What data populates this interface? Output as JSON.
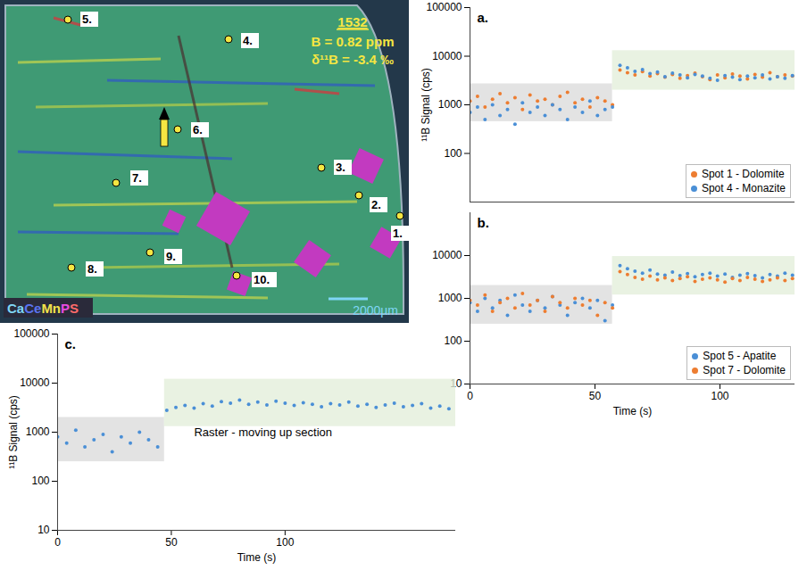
{
  "chart_data": [
    {
      "type": "image",
      "title": "1532",
      "annotations": [
        "B = 0.82 ppm",
        "δ¹¹B = -3.4 ‰"
      ],
      "spots": [
        "1.",
        "2.",
        "3.",
        "4.",
        "5.",
        "6.",
        "7.",
        "8.",
        "9.",
        "10."
      ],
      "element_legend": [
        {
          "name": "Ca",
          "color": "#7fd6f5"
        },
        {
          "name": "Ce",
          "color": "#5b74f0"
        },
        {
          "name": "Mn",
          "color": "#f2e24b"
        },
        {
          "name": "P",
          "color": "#e84be0"
        },
        {
          "name": "S",
          "color": "#ff6a6a"
        }
      ],
      "scale_bar": "2000µm"
    },
    {
      "type": "scatter",
      "title": "a.",
      "y_label": "¹¹B Signal (cps)",
      "log": "y",
      "tick_labels": "y",
      "legend": "lower right",
      "xlim": [
        0,
        130
      ],
      "ylim": [
        10,
        100000
      ],
      "yticks": [
        100,
        1000,
        10000,
        100000
      ],
      "bands": [
        {
          "x": [
            0,
            57
          ],
          "y": [
            450,
            2700
          ],
          "color": "#dcdcdc"
        },
        {
          "x": [
            57,
            130
          ],
          "y": [
            2000,
            13000
          ],
          "color": "#e4efdb"
        }
      ],
      "x": [
        0,
        3,
        6,
        9,
        12,
        15,
        18,
        21,
        24,
        27,
        30,
        33,
        36,
        39,
        42,
        45,
        48,
        51,
        54,
        57,
        60,
        63,
        66,
        69,
        72,
        75,
        78,
        81,
        84,
        87,
        90,
        93,
        96,
        99,
        102,
        105,
        108,
        111,
        114,
        117,
        120,
        123,
        126,
        129
      ],
      "series": [
        {
          "name": "Spot 1 - Dolomite",
          "color": "#ed7d31",
          "marker": "circle",
          "values": [
            1200,
            1500,
            900,
            1300,
            1700,
            1100,
            1400,
            800,
            1600,
            1200,
            1300,
            1000,
            1500,
            1800,
            1100,
            1300,
            900,
            1400,
            1200,
            1000,
            5200,
            4600,
            4100,
            4800,
            3900,
            4400,
            3700,
            4200,
            3500,
            4000,
            4500,
            3800,
            3300,
            4100,
            3600,
            4300,
            3900,
            3400,
            4200,
            3700,
            4600,
            3800,
            4100,
            3900
          ]
        },
        {
          "name": "Spot 4 - Monazite",
          "color": "#4a8fd6",
          "marker": "circle",
          "values": [
            700,
            900,
            500,
            1000,
            600,
            800,
            400,
            1100,
            700,
            900,
            600,
            1000,
            800,
            500,
            900,
            700,
            1200,
            600,
            800,
            900,
            6500,
            5800,
            4900,
            5300,
            4400,
            4700,
            3800,
            4500,
            4100,
            3600,
            4200,
            3900,
            3500,
            3200,
            4000,
            3700,
            3300,
            3900,
            3600,
            4100,
            3400,
            3800,
            3500,
            4000
          ]
        }
      ]
    },
    {
      "type": "scatter",
      "title": "b.",
      "x_label": "Time (s)",
      "log": "y",
      "legend": "lower right",
      "xlim": [
        0,
        130
      ],
      "ylim": [
        10,
        100000
      ],
      "xticks": [
        0,
        50,
        100
      ],
      "yticks": [
        10,
        100,
        1000,
        10000
      ],
      "bands": [
        {
          "x": [
            0,
            57
          ],
          "y": [
            250,
            2000
          ],
          "color": "#dcdcdc"
        },
        {
          "x": [
            57,
            130
          ],
          "y": [
            1200,
            9500
          ],
          "color": "#e4efdb"
        }
      ],
      "x": [
        0,
        3,
        6,
        9,
        12,
        15,
        18,
        21,
        24,
        27,
        30,
        33,
        36,
        39,
        42,
        45,
        48,
        51,
        54,
        57,
        60,
        63,
        66,
        69,
        72,
        75,
        78,
        81,
        84,
        87,
        90,
        93,
        96,
        99,
        102,
        105,
        108,
        111,
        114,
        117,
        120,
        123,
        126,
        129
      ],
      "series": [
        {
          "name": "Spot 5 - Apatite",
          "color": "#4a8fd6",
          "marker": "circle",
          "values": [
            800,
            500,
            1000,
            600,
            900,
            400,
            1200,
            700,
            500,
            900,
            600,
            1100,
            700,
            400,
            800,
            1000,
            600,
            900,
            300,
            700,
            5800,
            4900,
            4300,
            3900,
            4600,
            3700,
            3500,
            4100,
            3400,
            3800,
            3200,
            3600,
            3900,
            3300,
            3700,
            3100,
            3500,
            3800,
            3400,
            3000,
            3600,
            3300,
            3900,
            3500
          ]
        },
        {
          "name": "Spot 7 - Dolomite",
          "color": "#ed7d31",
          "marker": "circle",
          "values": [
            900,
            700,
            1200,
            500,
            800,
            1000,
            600,
            1300,
            700,
            900,
            500,
            1100,
            800,
            600,
            1000,
            700,
            900,
            400,
            800,
            600,
            4200,
            3600,
            3100,
            2800,
            3300,
            2700,
            3000,
            2600,
            2900,
            3200,
            2500,
            2800,
            3000,
            2700,
            2400,
            2900,
            2600,
            3100,
            2800,
            2500,
            2700,
            3000,
            2600,
            2900
          ]
        }
      ]
    },
    {
      "type": "scatter",
      "title": "c.",
      "y_label": "¹¹B Signal (cps)",
      "x_label": "Time (s)",
      "log": "y",
      "xlim": [
        0,
        175
      ],
      "ylim": [
        10,
        100000
      ],
      "xticks": [
        0,
        50,
        100
      ],
      "yticks": [
        10,
        100,
        1000,
        10000,
        100000
      ],
      "bands": [
        {
          "x": [
            0,
            47
          ],
          "y": [
            250,
            2000
          ],
          "color": "#dcdcdc"
        },
        {
          "x": [
            47,
            175
          ],
          "y": [
            1300,
            12000
          ],
          "color": "#e4efdb"
        }
      ],
      "annotations": [
        {
          "text": "Raster - moving up section",
          "x": 60,
          "y": 1000
        }
      ],
      "x": [
        0,
        4,
        8,
        12,
        16,
        20,
        24,
        28,
        32,
        36,
        40,
        44,
        48,
        52,
        56,
        60,
        64,
        68,
        72,
        76,
        80,
        84,
        88,
        92,
        96,
        100,
        104,
        108,
        112,
        116,
        120,
        124,
        128,
        132,
        136,
        140,
        144,
        148,
        152,
        156,
        160,
        164,
        168,
        172
      ],
      "series": [
        {
          "name": "Raster",
          "color": "#4a8fd6",
          "marker": "circle",
          "values": [
            800,
            600,
            1100,
            500,
            700,
            900,
            400,
            800,
            600,
            1000,
            700,
            500,
            2800,
            3200,
            3500,
            3100,
            3800,
            3400,
            4200,
            3900,
            4500,
            3700,
            4100,
            3600,
            4300,
            3900,
            3500,
            4000,
            3700,
            3300,
            3800,
            3600,
            4100,
            3400,
            3700,
            3200,
            3600,
            3900,
            3300,
            3500,
            3800,
            3100,
            3400,
            3000
          ]
        }
      ]
    }
  ]
}
